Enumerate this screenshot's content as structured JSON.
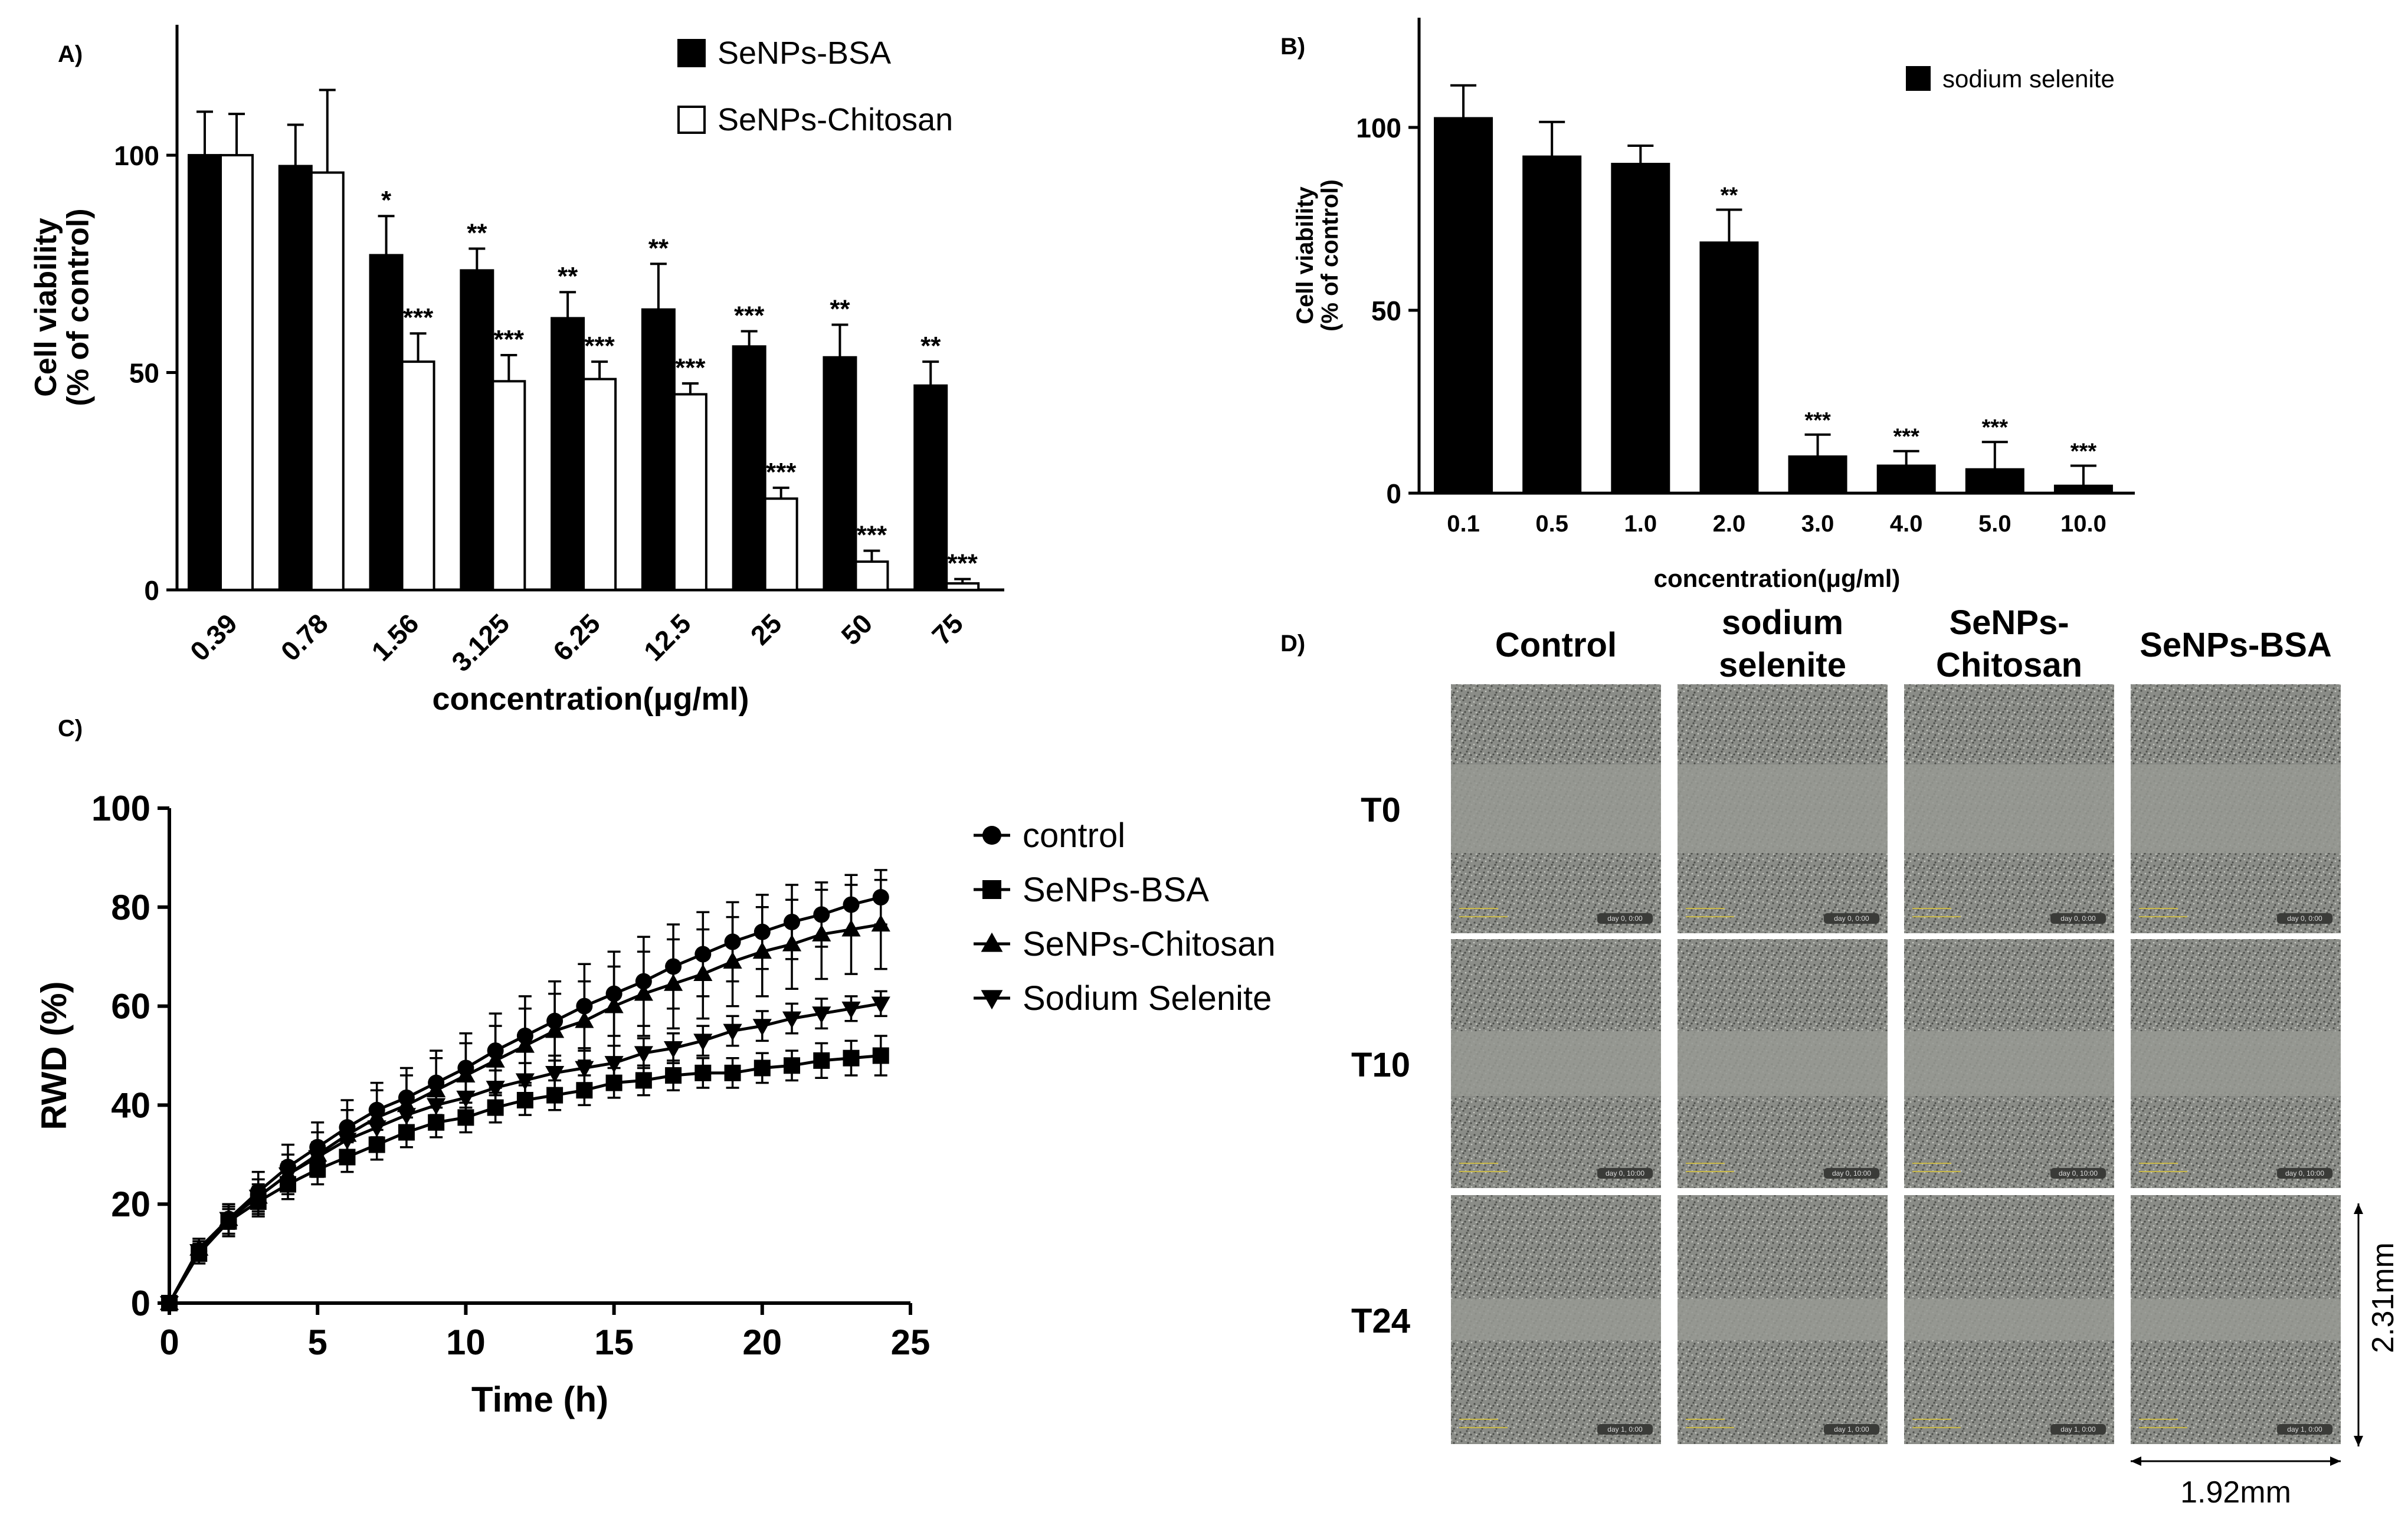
{
  "colors": {
    "black": "#000000",
    "white": "#ffffff",
    "micro_bg": "#8a8c87",
    "micro_scratch": "#979993",
    "scale_text": "#c9b94a"
  },
  "chart_data": [
    {
      "panel": "A)",
      "type": "bar",
      "ylabel": "Cell viability\n(% of control)",
      "xlabel": "concentration(μg/ml)",
      "ylim": [
        0,
        130
      ],
      "yticks": [
        0,
        50,
        100
      ],
      "categories": [
        "0.39",
        "0.78",
        "1.56",
        "3.125",
        "6.25",
        "12.5",
        "25",
        "50",
        "75"
      ],
      "series": [
        {
          "name": "SeNPs-BSA",
          "fill": "black",
          "values": [
            100,
            97.5,
            77,
            73.5,
            62.5,
            64.5,
            56,
            53.5,
            47
          ],
          "errors": [
            10,
            9.5,
            9,
            5,
            6,
            10.5,
            3.5,
            7.5,
            5.5
          ],
          "sig": [
            "",
            "",
            "*",
            "**",
            "**",
            "**",
            "***",
            "**",
            "**"
          ]
        },
        {
          "name": "SeNPs-Chitosan",
          "fill": "white",
          "values": [
            100,
            96,
            52.5,
            48,
            48.5,
            45,
            21,
            6.5,
            1.5
          ],
          "errors": [
            9.5,
            19,
            6.5,
            6,
            4,
            2.5,
            2.5,
            2.5,
            1
          ],
          "sig": [
            "",
            "",
            "***",
            "***",
            "***",
            "***",
            "***",
            "***",
            "***"
          ]
        }
      ],
      "legend": [
        "SeNPs-BSA",
        "SeNPs-Chitosan"
      ]
    },
    {
      "panel": "B)",
      "type": "bar",
      "ylabel": "Cell viability\n(% of control)",
      "xlabel": "concentration(μg/ml)",
      "ylim": [
        0,
        130
      ],
      "yticks": [
        0,
        50,
        100
      ],
      "categories": [
        "0.1",
        "0.5",
        "1.0",
        "2.0",
        "3.0",
        "4.0",
        "5.0",
        "10.0"
      ],
      "series": [
        {
          "name": "sodium selenite",
          "fill": "black",
          "values": [
            102.5,
            92,
            90,
            68.5,
            10,
            7.5,
            6.5,
            2
          ],
          "errors": [
            9,
            9.5,
            5,
            9,
            6,
            4,
            7.5,
            5.5
          ],
          "sig": [
            "",
            "",
            "",
            "**",
            "***",
            "***",
            "***",
            "***"
          ]
        }
      ],
      "legend": [
        "sodium selenite"
      ]
    },
    {
      "panel": "C)",
      "type": "line",
      "xlabel": "Time (h)",
      "ylabel": "RWD (%)",
      "xlim": [
        0,
        25
      ],
      "ylim": [
        0,
        100
      ],
      "xticks": [
        0,
        5,
        10,
        15,
        20,
        25
      ],
      "yticks": [
        0,
        20,
        40,
        60,
        80,
        100
      ],
      "x": [
        0,
        1,
        2,
        3,
        4,
        5,
        6,
        7,
        8,
        9,
        10,
        11,
        12,
        13,
        14,
        15,
        16,
        17,
        18,
        19,
        20,
        21,
        22,
        23,
        24
      ],
      "series": [
        {
          "name": "control",
          "marker": "circle",
          "values": [
            0,
            10.5,
            17,
            22.5,
            27.5,
            31.5,
            35.5,
            39,
            41.5,
            44.5,
            47.5,
            51,
            54,
            57,
            60,
            62.5,
            65,
            68,
            70.5,
            73,
            75,
            77,
            78.5,
            80.5,
            82
          ],
          "errors": [
            0,
            2,
            3,
            4,
            4.5,
            5,
            5.5,
            5.5,
            6,
            6.5,
            7,
            7.5,
            8,
            8,
            8.5,
            8.5,
            9,
            8.5,
            8.5,
            8,
            7.5,
            7.5,
            6.5,
            6,
            5.5
          ]
        },
        {
          "name": "SeNPs-BSA",
          "marker": "square",
          "values": [
            0,
            10,
            16.5,
            20.5,
            24,
            27,
            29.5,
            32,
            34.5,
            36.5,
            37.5,
            39.5,
            41,
            42,
            43,
            44.5,
            45,
            46,
            46.5,
            46.5,
            47.5,
            48,
            49,
            49.5,
            50
          ],
          "errors": [
            0,
            2,
            3,
            3,
            3,
            3,
            3,
            3,
            3,
            3,
            3,
            3,
            3,
            3,
            3,
            3,
            3,
            3,
            3,
            3,
            3,
            3,
            3.5,
            3.5,
            4
          ]
        },
        {
          "name": "SeNPs-Chitosan",
          "marker": "triangle-up",
          "values": [
            0,
            11,
            17,
            21.5,
            26,
            30,
            34,
            37.5,
            40,
            43,
            46,
            49,
            52,
            55,
            57,
            60,
            62.5,
            64.5,
            66.5,
            69,
            71,
            72.5,
            74.5,
            75.5,
            76.5
          ],
          "errors": [
            0,
            2,
            3,
            3.5,
            4,
            4.5,
            5,
            5.5,
            6,
            6.5,
            6.5,
            7,
            7.5,
            7.5,
            8,
            8,
            8.5,
            9,
            9,
            9,
            9,
            9,
            9,
            9,
            9
          ]
        },
        {
          "name": "Sodium Selenite",
          "marker": "triangle-down",
          "values": [
            0,
            10.5,
            17,
            21.5,
            26,
            29.5,
            33,
            35.5,
            38,
            40,
            41.5,
            43.5,
            45,
            46.5,
            47.5,
            48.5,
            50.5,
            51.5,
            53,
            55,
            56,
            57.5,
            58.5,
            59.5,
            60.5
          ],
          "errors": [
            0,
            1.5,
            2,
            2.5,
            2.5,
            3,
            3,
            3,
            3,
            3.5,
            3.5,
            3.5,
            3.5,
            3.5,
            3.5,
            3.5,
            3,
            3,
            3,
            3,
            3,
            3,
            3,
            2.5,
            2.5
          ]
        }
      ],
      "legend": [
        "control",
        "SeNPs-BSA",
        "SeNPs-Chitosan",
        "Sodium Selenite"
      ]
    },
    {
      "panel": "D)",
      "type": "image-grid",
      "columns": [
        "Control",
        "sodium\nselenite",
        "SeNPs-\nChitosan",
        "SeNPs-BSA"
      ],
      "rows": [
        "T0",
        "T10",
        "T24"
      ],
      "tile_labels": [
        "day 0, 0:00",
        "day 0, 10:00",
        "day 1, 0:00"
      ],
      "scale_height": "2.31mm",
      "scale_width": "1.92mm"
    }
  ]
}
